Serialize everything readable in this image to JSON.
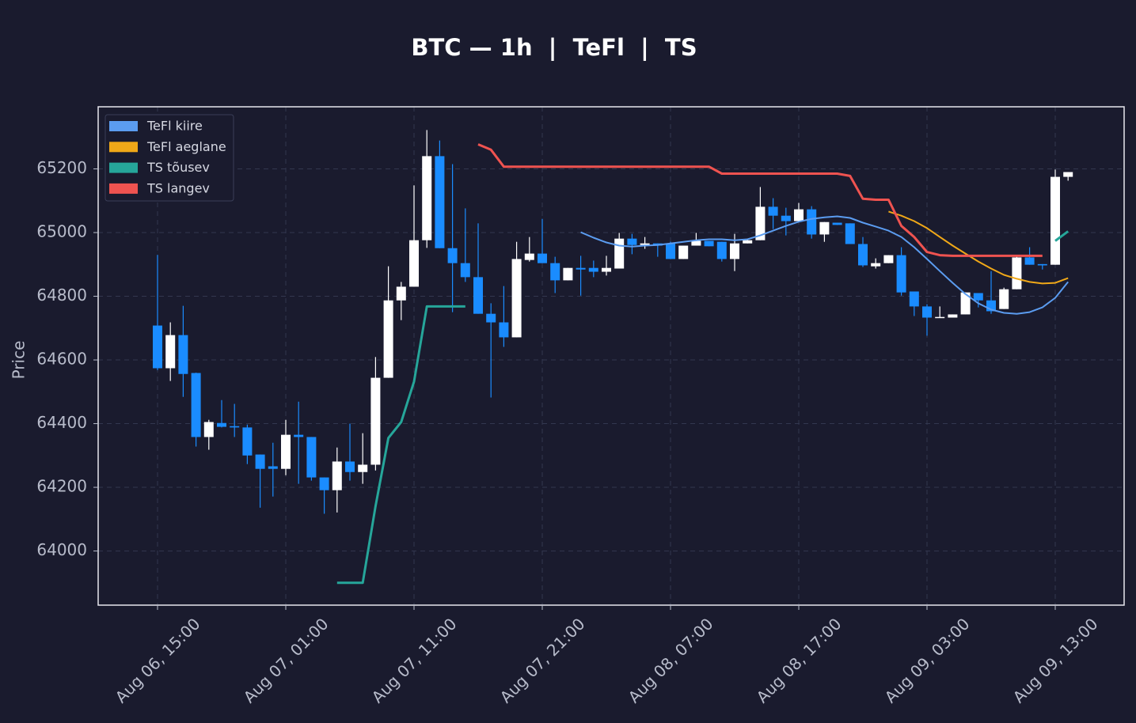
{
  "chart_data": {
    "type": "candlestick",
    "title": "BTC — 1h  |  TeFl  |  TS",
    "y_label": "Price",
    "up_color": "#ffffff",
    "down_color": "#1a8cff",
    "grid": true,
    "legend": "upper left",
    "x": [
      "Aug 06, 15:00",
      "Aug 06, 16:00",
      "Aug 06, 17:00",
      "Aug 06, 18:00",
      "Aug 06, 19:00",
      "Aug 06, 20:00",
      "Aug 06, 21:00",
      "Aug 06, 22:00",
      "Aug 06, 23:00",
      "Aug 07, 00:00",
      "Aug 07, 01:00",
      "Aug 07, 02:00",
      "Aug 07, 03:00",
      "Aug 07, 04:00",
      "Aug 07, 05:00",
      "Aug 07, 06:00",
      "Aug 07, 07:00",
      "Aug 07, 08:00",
      "Aug 07, 09:00",
      "Aug 07, 10:00",
      "Aug 07, 11:00",
      "Aug 07, 12:00",
      "Aug 07, 13:00",
      "Aug 07, 14:00",
      "Aug 07, 15:00",
      "Aug 07, 16:00",
      "Aug 07, 17:00",
      "Aug 07, 18:00",
      "Aug 07, 19:00",
      "Aug 07, 20:00",
      "Aug 07, 21:00",
      "Aug 07, 22:00",
      "Aug 07, 23:00",
      "Aug 08, 00:00",
      "Aug 08, 01:00",
      "Aug 08, 02:00",
      "Aug 08, 03:00",
      "Aug 08, 04:00",
      "Aug 08, 05:00",
      "Aug 08, 06:00",
      "Aug 08, 07:00",
      "Aug 08, 08:00",
      "Aug 08, 09:00",
      "Aug 08, 10:00",
      "Aug 08, 11:00",
      "Aug 08, 12:00",
      "Aug 08, 13:00",
      "Aug 08, 14:00",
      "Aug 08, 15:00",
      "Aug 08, 16:00",
      "Aug 08, 17:00",
      "Aug 08, 18:00",
      "Aug 08, 19:00",
      "Aug 08, 20:00",
      "Aug 08, 21:00",
      "Aug 08, 22:00",
      "Aug 08, 23:00",
      "Aug 09, 00:00",
      "Aug 09, 01:00",
      "Aug 09, 02:00",
      "Aug 09, 03:00",
      "Aug 09, 04:00",
      "Aug 09, 05:00",
      "Aug 09, 06:00",
      "Aug 09, 07:00",
      "Aug 09, 08:00",
      "Aug 09, 09:00",
      "Aug 09, 10:00",
      "Aug 09, 11:00",
      "Aug 09, 12:00",
      "Aug 09, 13:00",
      "Aug 09, 14:00"
    ],
    "xticks": [
      "Aug 06, 15:00",
      "Aug 07, 01:00",
      "Aug 07, 11:00",
      "Aug 07, 21:00",
      "Aug 08, 07:00",
      "Aug 08, 17:00",
      "Aug 09, 03:00",
      "Aug 09, 13:00"
    ],
    "ylim": [
      63830,
      65395
    ],
    "yticks": [
      64000,
      64200,
      64400,
      64600,
      64800,
      65000,
      65200
    ],
    "open": [
      64708,
      64574,
      64678,
      64559,
      64358,
      64402,
      64392,
      64388,
      64303,
      64266,
      64258,
      64365,
      64358,
      64231,
      64191,
      64281,
      64248,
      64271,
      64544,
      64787,
      64830,
      64976,
      65240,
      64951,
      64904,
      64860,
      64745,
      64718,
      64671,
      64914,
      64934,
      64904,
      64850,
      64889,
      64889,
      64877,
      64887,
      64981,
      64961,
      64966,
      64966,
      64917,
      64959,
      64974,
      64971,
      64917,
      64966,
      64976,
      65081,
      65053,
      65036,
      65073,
      64994,
      65031,
      65029,
      64964,
      64894,
      64904,
      64929,
      64815,
      64768,
      64733,
      64733,
      64743,
      64810,
      64787,
      64760,
      64822,
      64922,
      64901,
      64899,
      65175
    ],
    "high": [
      64930,
      64718,
      64770,
      64560,
      64412,
      64474,
      64462,
      64397,
      64303,
      64340,
      64412,
      64469,
      64358,
      64231,
      64325,
      64400,
      64370,
      64609,
      64894,
      64845,
      65148,
      65322,
      65289,
      65215,
      65076,
      65029,
      64778,
      64832,
      64971,
      64986,
      65043,
      64924,
      64889,
      64927,
      64912,
      64927,
      64999,
      64996,
      64986,
      64966,
      64971,
      64959,
      64999,
      64974,
      64971,
      64996,
      64981,
      65143,
      65108,
      65078,
      65093,
      65083,
      65033,
      65031,
      65029,
      64986,
      64919,
      64929,
      64954,
      64815,
      64775,
      64768,
      64743,
      64812,
      64810,
      64879,
      64827,
      64927,
      64954,
      64901,
      65198,
      65190
    ],
    "low": [
      64568,
      64534,
      64484,
      64328,
      64318,
      64388,
      64358,
      64273,
      64136,
      64171,
      64238,
      64211,
      64221,
      64117,
      64121,
      64221,
      64211,
      64253,
      64544,
      64725,
      64830,
      64952,
      64951,
      64750,
      64845,
      64745,
      64482,
      64641,
      64671,
      64909,
      64904,
      64810,
      64850,
      64802,
      64860,
      64865,
      64887,
      64932,
      64949,
      64924,
      64917,
      64917,
      64959,
      64957,
      64909,
      64879,
      64966,
      64976,
      65011,
      64991,
      65036,
      64981,
      64971,
      65024,
      64964,
      64892,
      64887,
      64904,
      64802,
      64738,
      64676,
      64733,
      64733,
      64743,
      64765,
      64745,
      64760,
      64822,
      64899,
      64884,
      64899,
      65163
    ],
    "close": [
      64574,
      64678,
      64556,
      64358,
      64405,
      64390,
      64388,
      64300,
      64258,
      64258,
      64365,
      64358,
      64231,
      64191,
      64281,
      64248,
      64271,
      64544,
      64787,
      64830,
      64976,
      65240,
      64951,
      64904,
      64860,
      64745,
      64718,
      64671,
      64917,
      64934,
      64904,
      64850,
      64889,
      64884,
      64877,
      64889,
      64981,
      64961,
      64966,
      64959,
      64917,
      64959,
      64974,
      64957,
      64917,
      64966,
      64976,
      65081,
      65053,
      65036,
      65073,
      64994,
      65033,
      65024,
      64964,
      64897,
      64904,
      64929,
      64812,
      64768,
      64733,
      64735,
      64743,
      64812,
      64787,
      64753,
      64822,
      64922,
      64899,
      64897,
      65175,
      65190
    ],
    "series": [
      {
        "name": "TeFl kiire",
        "color": "#5b9cf0",
        "width": 2,
        "values": [
          null,
          null,
          null,
          null,
          null,
          null,
          null,
          null,
          null,
          null,
          null,
          null,
          null,
          null,
          null,
          null,
          null,
          null,
          null,
          null,
          null,
          null,
          null,
          null,
          null,
          null,
          null,
          null,
          null,
          null,
          null,
          null,
          null,
          65001,
          64984,
          64969,
          64959,
          64956,
          64959,
          64961,
          64966,
          64971,
          64976,
          64979,
          64979,
          64976,
          64979,
          64991,
          65006,
          65021,
          65034,
          65043,
          65048,
          65051,
          65046,
          65031,
          65019,
          65006,
          64986,
          64954,
          64917,
          64879,
          64842,
          64807,
          64778,
          64758,
          64748,
          64745,
          64750,
          64765,
          64795,
          64845
        ]
      },
      {
        "name": "TeFl aeglane",
        "color": "#f0a818",
        "width": 2,
        "values": [
          null,
          null,
          null,
          null,
          null,
          null,
          null,
          null,
          null,
          null,
          null,
          null,
          null,
          null,
          null,
          null,
          null,
          null,
          null,
          null,
          null,
          null,
          null,
          null,
          null,
          null,
          null,
          null,
          null,
          null,
          null,
          null,
          null,
          null,
          null,
          null,
          null,
          null,
          null,
          null,
          null,
          null,
          null,
          null,
          null,
          null,
          null,
          null,
          null,
          null,
          null,
          null,
          null,
          null,
          null,
          null,
          null,
          65066,
          65053,
          65036,
          65014,
          64986,
          64959,
          64934,
          64909,
          64887,
          64867,
          64855,
          64845,
          64840,
          64842,
          64857
        ]
      },
      {
        "name": "TS tõusev",
        "color": "#26a69a",
        "width": 3,
        "values": [
          null,
          null,
          null,
          null,
          null,
          null,
          null,
          null,
          null,
          null,
          null,
          null,
          null,
          null,
          63900,
          63900,
          63900,
          64141,
          64355,
          64405,
          64532,
          64768,
          64768,
          64768,
          64768,
          null,
          null,
          null,
          null,
          null,
          null,
          null,
          null,
          null,
          null,
          null,
          null,
          null,
          null,
          null,
          null,
          null,
          null,
          null,
          null,
          null,
          null,
          null,
          null,
          null,
          null,
          null,
          null,
          null,
          null,
          null,
          null,
          null,
          null,
          null,
          null,
          null,
          null,
          null,
          null,
          null,
          null,
          null,
          null,
          null,
          64974,
          65004
        ]
      },
      {
        "name": "TS langev",
        "color": "#ef5350",
        "width": 3,
        "values": [
          null,
          null,
          null,
          null,
          null,
          null,
          null,
          null,
          null,
          null,
          null,
          null,
          null,
          null,
          null,
          null,
          null,
          null,
          null,
          null,
          null,
          null,
          null,
          null,
          null,
          65277,
          65260,
          65207,
          65207,
          65207,
          65207,
          65207,
          65207,
          65207,
          65207,
          65207,
          65207,
          65207,
          65207,
          65207,
          65207,
          65207,
          65207,
          65207,
          65185,
          65185,
          65185,
          65185,
          65185,
          65185,
          65185,
          65185,
          65185,
          65185,
          65178,
          65106,
          65103,
          65103,
          65021,
          64986,
          64939,
          64929,
          64927,
          64927,
          64927,
          64927,
          64927,
          64927,
          64927,
          64927,
          null,
          null
        ]
      }
    ]
  }
}
